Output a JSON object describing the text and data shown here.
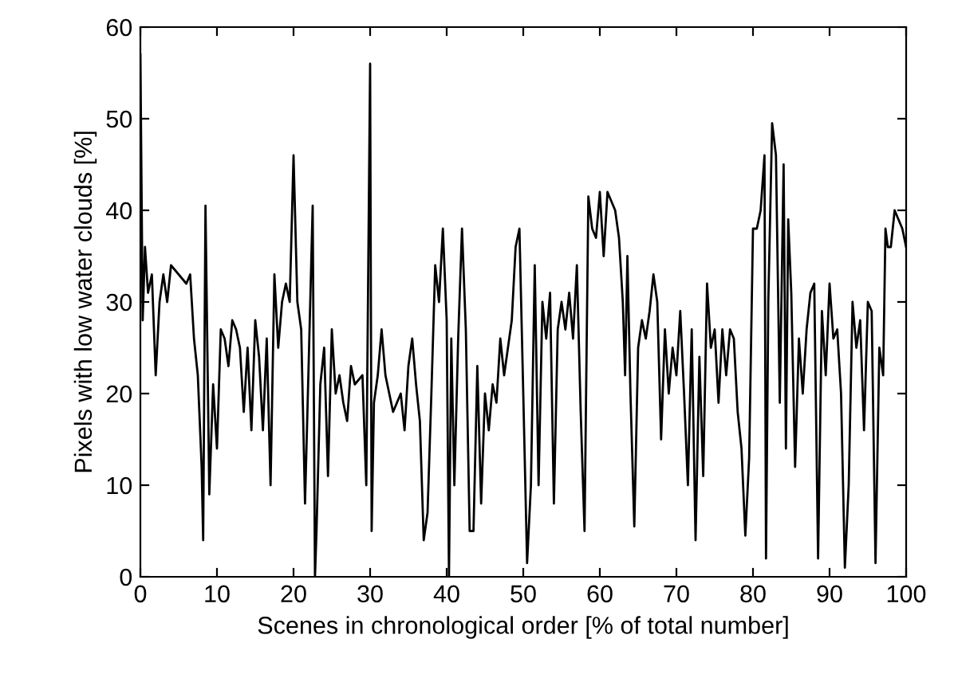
{
  "chart_data": {
    "type": "line",
    "xlabel": "Scenes in chronological order [% of total number]",
    "ylabel": "Pixels with low water clouds [%]",
    "xlim": [
      0,
      100
    ],
    "ylim": [
      0,
      60
    ],
    "xticks": [
      0,
      10,
      20,
      30,
      40,
      50,
      60,
      70,
      80,
      90,
      100
    ],
    "yticks": [
      0,
      10,
      20,
      30,
      40,
      50,
      60
    ],
    "grid": false,
    "legend": false,
    "marker": "none",
    "line_style": "solid",
    "series": [
      {
        "color": "#000000",
        "x": [
          0,
          0.3,
          0.6,
          1,
          1.5,
          2,
          2.5,
          3,
          3.5,
          4,
          5,
          6,
          6.5,
          7,
          7.5,
          8,
          8.2,
          8.5,
          9,
          9.5,
          10,
          10.5,
          11,
          11.5,
          12,
          12.5,
          13,
          13.5,
          14,
          14.5,
          15,
          15.5,
          16,
          16.5,
          17,
          17.5,
          18,
          18.5,
          19,
          19.5,
          20,
          20.5,
          21,
          21.5,
          22,
          22.5,
          22.8,
          23,
          23.5,
          24,
          24.5,
          25,
          25.5,
          26,
          26.5,
          27,
          27.5,
          28,
          29,
          29.5,
          30,
          30.2,
          30.5,
          31,
          31.5,
          32,
          33,
          33.5,
          34,
          34.5,
          35,
          35.5,
          36,
          36.5,
          37,
          37.5,
          38,
          38.5,
          39,
          39.5,
          40,
          40.3,
          40.6,
          41,
          41.5,
          42,
          42.5,
          43,
          43.5,
          44,
          44.5,
          45,
          45.5,
          46,
          46.5,
          47,
          47.5,
          48,
          48.5,
          49,
          49.5,
          50,
          50.5,
          51,
          51.5,
          52,
          52.5,
          53,
          53.5,
          54,
          54.5,
          55,
          55.5,
          56,
          56.5,
          57,
          57.5,
          58,
          58.5,
          59,
          59.5,
          60,
          60.5,
          61,
          61.5,
          62,
          62.5,
          63,
          63.3,
          63.6,
          64,
          64.5,
          65,
          65.5,
          66,
          66.5,
          67,
          67.5,
          68,
          68.5,
          69,
          69.5,
          70,
          70.5,
          71,
          71.5,
          72,
          72.5,
          73,
          73.5,
          74,
          74.5,
          75,
          75.5,
          76,
          76.5,
          77,
          77.5,
          78,
          78.5,
          79,
          79.5,
          80,
          80.5,
          81,
          81.5,
          81.7,
          82,
          82.5,
          83,
          83.5,
          84,
          84.3,
          84.6,
          85,
          85.5,
          86,
          86.5,
          87,
          87.5,
          88,
          88.5,
          89,
          89.5,
          90,
          90.5,
          91,
          91.5,
          92,
          92.5,
          93,
          93.5,
          94,
          94.5,
          95,
          95.5,
          96,
          96.5,
          97,
          97.3,
          97.6,
          98,
          98.5,
          99,
          99.5,
          100
        ],
        "values": [
          57,
          28,
          36,
          31,
          33,
          22,
          30,
          33,
          30,
          34,
          33,
          32,
          33,
          26,
          22,
          12,
          4,
          40.5,
          9,
          21,
          14,
          27,
          26,
          23,
          28,
          27,
          25,
          18,
          25,
          16,
          28,
          24,
          16,
          26,
          10,
          33,
          25,
          30,
          32,
          30,
          46,
          30,
          27,
          8,
          24,
          40.5,
          0,
          5,
          21,
          25,
          11,
          27,
          20,
          22,
          19,
          17,
          23,
          21,
          22,
          10,
          56,
          5,
          19,
          22,
          27,
          22,
          18,
          19,
          20,
          16,
          23,
          26,
          21,
          17,
          4,
          7,
          20,
          34,
          30,
          38,
          28,
          0,
          26,
          10,
          26,
          38,
          27,
          5,
          5,
          23,
          8,
          20,
          16,
          21,
          19,
          26,
          22,
          25,
          28,
          36,
          38,
          20,
          1.5,
          10,
          34,
          10,
          30,
          26,
          31,
          8,
          27,
          30,
          27,
          31,
          26,
          34,
          18,
          5,
          41.5,
          38,
          37,
          42,
          35,
          42,
          41,
          40,
          37,
          30,
          22,
          35,
          20,
          5.5,
          25,
          28,
          26,
          29,
          33,
          30,
          15,
          27,
          20,
          25,
          22,
          29,
          20,
          10,
          27,
          4,
          24,
          11,
          32,
          25,
          27,
          19,
          27,
          22,
          27,
          26,
          18,
          14,
          4.5,
          13,
          38,
          38,
          40,
          46,
          2,
          30,
          49.5,
          46,
          19,
          45,
          14,
          39,
          31,
          12,
          26,
          20,
          27,
          31,
          32,
          2,
          29,
          22,
          32,
          26,
          27,
          20,
          1,
          10,
          30,
          25,
          28,
          16,
          30,
          29,
          1.5,
          25,
          22,
          38,
          36,
          36,
          40,
          39,
          38,
          36
        ]
      }
    ]
  }
}
